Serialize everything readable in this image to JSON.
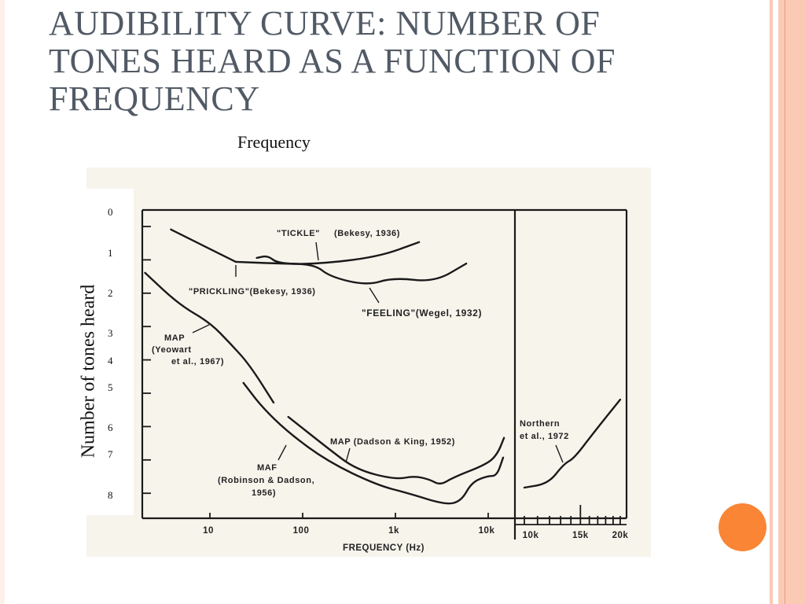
{
  "slide": {
    "title": "AUDIBILITY CURVE: NUMBER OF TONES HEARD AS A FUNCTION OF FREQUENCY",
    "top_label": "Frequency",
    "side_label": "Number of tones heard",
    "side_numbers": [
      "0",
      "1",
      "2",
      "3",
      "4",
      "5",
      "6",
      "7",
      "8"
    ],
    "accent_color": "#f98535",
    "stripe_color": "#fbcab5",
    "title_color": "#515a65"
  },
  "chart_data": {
    "type": "line",
    "xlabel": "FREQUENCY (Hz)",
    "ylabel": "Number of tones heard",
    "x_scale": "log",
    "xlim": [
      1.8,
      16000
    ],
    "x_ticks": [
      {
        "value": 10,
        "label": "10"
      },
      {
        "value": 100,
        "label": "100"
      },
      {
        "value": 1000,
        "label": "1k"
      },
      {
        "value": 10000,
        "label": "10k"
      }
    ],
    "inset_x_ticks": [
      {
        "value": 10000,
        "label": "10k"
      },
      {
        "value": 15000,
        "label": "15k"
      },
      {
        "value": 20000,
        "label": "20k"
      }
    ],
    "ylim": [
      -0.5,
      8.75
    ],
    "y_ticks": [
      0,
      1,
      2,
      3,
      4,
      5,
      6,
      7,
      8
    ],
    "series": [
      {
        "name": "\"PRICKLING\" (Bekesy, 1936)",
        "panel": "main",
        "points": [
          [
            3.8,
            0.09
          ],
          [
            19,
            1.06
          ]
        ]
      },
      {
        "name": "\"TICKLE\" (Bekesy, 1936)",
        "panel": "main",
        "points": [
          [
            19,
            1.06
          ],
          [
            54,
            1.11
          ],
          [
            134,
            1.13
          ],
          [
            638,
            0.92
          ],
          [
            1800,
            0.47
          ]
        ]
      },
      {
        "name": "\"FEELING\" (Wegel, 1932)",
        "panel": "main",
        "points": [
          [
            32,
            0.94
          ],
          [
            42,
            0.87
          ],
          [
            54,
            1.11
          ],
          [
            134,
            1.13
          ],
          [
            198,
            1.51
          ],
          [
            495,
            1.77
          ],
          [
            944,
            1.53
          ],
          [
            2650,
            1.67
          ],
          [
            5800,
            1.11
          ]
        ]
      },
      {
        "name": "MAP (Yeowart et al., 1967)",
        "panel": "main",
        "points": [
          [
            2.0,
            1.39
          ],
          [
            4.6,
            2.33
          ],
          [
            10,
            2.88
          ],
          [
            16.6,
            3.51
          ],
          [
            26.5,
            4.13
          ],
          [
            48.6,
            5.28
          ]
        ]
      },
      {
        "name": "MAF (Robinson & Dadson, 1956)",
        "panel": "main",
        "points": [
          [
            23,
            4.69
          ],
          [
            36,
            5.4
          ],
          [
            70,
            6.18
          ],
          [
            187,
            7.05
          ],
          [
            638,
            7.76
          ],
          [
            1390,
            8.0
          ],
          [
            3490,
            8.35
          ],
          [
            5150,
            8.23
          ],
          [
            6640,
            7.67
          ],
          [
            9800,
            7.48
          ],
          [
            12400,
            7.48
          ],
          [
            14500,
            6.93
          ]
        ]
      },
      {
        "name": "MAP (Dadson & King, 1952)",
        "panel": "main",
        "points": [
          [
            70,
            5.71
          ],
          [
            187,
            6.65
          ],
          [
            377,
            7.29
          ],
          [
            1000,
            7.59
          ],
          [
            1600,
            7.48
          ],
          [
            2360,
            7.59
          ],
          [
            3040,
            7.76
          ],
          [
            4240,
            7.52
          ],
          [
            9800,
            7.12
          ],
          [
            12600,
            6.82
          ],
          [
            14800,
            6.34
          ]
        ]
      },
      {
        "name": "Northern et al., 1972",
        "panel": "inset",
        "points": [
          [
            10000,
            7.83
          ],
          [
            11900,
            7.71
          ],
          [
            13300,
            7.12
          ],
          [
            14300,
            6.96
          ],
          [
            16300,
            6.25
          ],
          [
            20000,
            5.19
          ]
        ]
      }
    ],
    "annotations": {
      "tickle_a": "\"TICKLE\"",
      "tickle_b": "(Bekesy, 1936)",
      "prickling": "\"PRICKLING\"(Bekesy, 1936)",
      "feeling": "\"FEELING\"(Wegel, 1932)",
      "map_yeowart_1": "MAP",
      "map_yeowart_2": "(Yeowart",
      "map_yeowart_3": "et al., 1967)",
      "map_dadson": "MAP (Dadson & King, 1952)",
      "maf_1": "MAF",
      "maf_2": "(Robinson & Dadson,",
      "maf_3": "1956)",
      "northern_1": "Northern",
      "northern_2": "et al., 1972"
    }
  }
}
